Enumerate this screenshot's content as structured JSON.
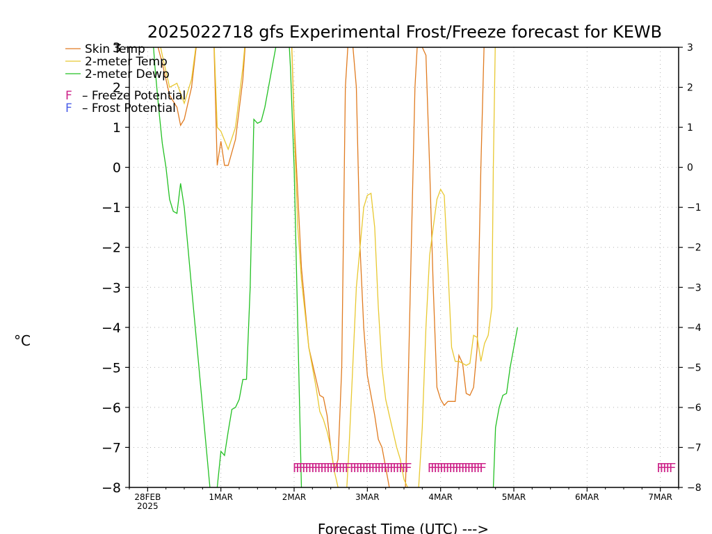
{
  "chart_data": {
    "type": "line",
    "title": "2025022718 gfs Experimental Frost/Freeze forecast for KEWB",
    "xlabel": "Forecast Time (UTC) --->",
    "ylabel": "°C",
    "ylim": [
      -8,
      3
    ],
    "yticks": [
      -8,
      -7,
      -6,
      -5,
      -4,
      -3,
      -2,
      -1,
      0,
      1,
      2,
      3
    ],
    "xlim_days": [
      -0.25,
      7.25
    ],
    "xticks": [
      {
        "day": 0,
        "label": "28FEB",
        "sublabel": "2025"
      },
      {
        "day": 1,
        "label": "1MAR",
        "sublabel": ""
      },
      {
        "day": 2,
        "label": "2MAR",
        "sublabel": ""
      },
      {
        "day": 3,
        "label": "3MAR",
        "sublabel": ""
      },
      {
        "day": 4,
        "label": "4MAR",
        "sublabel": ""
      },
      {
        "day": 5,
        "label": "5MAR",
        "sublabel": ""
      },
      {
        "day": 6,
        "label": "6MAR",
        "sublabel": ""
      },
      {
        "day": 7,
        "label": "7MAR",
        "sublabel": ""
      }
    ],
    "grid": true,
    "legend_position": "top-left",
    "series": [
      {
        "name": "Skin Temp",
        "color": "#e07b20",
        "points": [
          [
            0.07,
            3.5
          ],
          [
            0.2,
            2.6
          ],
          [
            0.3,
            1.8
          ],
          [
            0.4,
            1.5
          ],
          [
            0.45,
            1.05
          ],
          [
            0.5,
            1.2
          ],
          [
            0.6,
            2.0
          ],
          [
            0.7,
            3.6
          ],
          null,
          [
            0.9,
            3.5
          ],
          [
            0.95,
            0.05
          ],
          [
            1.0,
            0.65
          ],
          [
            1.05,
            0.05
          ],
          [
            1.1,
            0.05
          ],
          [
            1.2,
            0.7
          ],
          [
            1.3,
            2.2
          ],
          [
            1.35,
            3.5
          ],
          null,
          [
            1.96,
            3.5
          ],
          [
            2.0,
            1.2
          ],
          [
            2.1,
            -2.5
          ],
          [
            2.2,
            -4.5
          ],
          [
            2.3,
            -5.3
          ],
          [
            2.35,
            -5.7
          ],
          [
            2.4,
            -5.75
          ],
          [
            2.45,
            -6.2
          ],
          [
            2.5,
            -7.0
          ],
          [
            2.55,
            -7.6
          ],
          [
            2.6,
            -7.3
          ],
          [
            2.65,
            -5.0
          ],
          [
            2.7,
            2.0
          ],
          [
            2.75,
            3.5
          ],
          null,
          [
            2.78,
            3.5
          ],
          [
            2.85,
            2.0
          ],
          [
            2.9,
            -2.0
          ],
          [
            2.95,
            -4.0
          ],
          [
            3.0,
            -5.2
          ],
          [
            3.1,
            -6.2
          ],
          [
            3.15,
            -6.8
          ],
          [
            3.2,
            -7.0
          ],
          [
            3.25,
            -7.5
          ],
          [
            3.3,
            -8.0
          ],
          null,
          [
            3.52,
            -8.0
          ],
          [
            3.55,
            -6.0
          ],
          [
            3.6,
            -2.0
          ],
          [
            3.65,
            2.0
          ],
          [
            3.68,
            3.0
          ],
          [
            3.75,
            3.0
          ],
          [
            3.8,
            2.8
          ],
          [
            3.85,
            0.0
          ],
          [
            3.9,
            -3.0
          ],
          [
            3.95,
            -5.5
          ],
          [
            4.0,
            -5.8
          ],
          [
            4.05,
            -5.95
          ],
          [
            4.1,
            -5.85
          ],
          [
            4.2,
            -5.85
          ],
          [
            4.25,
            -4.7
          ],
          [
            4.3,
            -4.9
          ],
          [
            4.35,
            -5.65
          ],
          [
            4.4,
            -5.7
          ],
          [
            4.45,
            -5.5
          ],
          [
            4.5,
            -4.5
          ],
          [
            4.55,
            0.0
          ],
          [
            4.6,
            3.5
          ]
        ]
      },
      {
        "name": "2-meter Temp",
        "color": "#e8c830",
        "points": [
          [
            0.12,
            3.5
          ],
          [
            0.2,
            2.8
          ],
          [
            0.3,
            2.0
          ],
          [
            0.4,
            2.1
          ],
          [
            0.5,
            1.6
          ],
          [
            0.6,
            2.2
          ],
          [
            0.7,
            3.6
          ],
          null,
          [
            0.9,
            3.5
          ],
          [
            0.95,
            1.0
          ],
          [
            1.0,
            0.9
          ],
          [
            1.1,
            0.45
          ],
          [
            1.2,
            1.0
          ],
          [
            1.3,
            2.5
          ],
          [
            1.35,
            3.5
          ],
          null,
          [
            1.96,
            3.5
          ],
          [
            2.0,
            1.0
          ],
          [
            2.05,
            -1.5
          ],
          [
            2.1,
            -2.8
          ],
          [
            2.2,
            -4.5
          ],
          [
            2.3,
            -5.5
          ],
          [
            2.35,
            -6.1
          ],
          [
            2.4,
            -6.3
          ],
          [
            2.45,
            -6.6
          ],
          [
            2.5,
            -7.0
          ],
          [
            2.55,
            -7.6
          ],
          [
            2.6,
            -8.0
          ],
          null,
          [
            2.72,
            -8.0
          ],
          [
            2.75,
            -7.0
          ],
          [
            2.8,
            -5.0
          ],
          [
            2.85,
            -3.0
          ],
          [
            2.9,
            -2.0
          ],
          [
            2.95,
            -1.0
          ],
          [
            3.0,
            -0.7
          ],
          [
            3.05,
            -0.65
          ],
          [
            3.1,
            -1.5
          ],
          [
            3.15,
            -3.5
          ],
          [
            3.2,
            -5.0
          ],
          [
            3.25,
            -5.8
          ],
          [
            3.3,
            -6.2
          ],
          [
            3.35,
            -6.6
          ],
          [
            3.4,
            -7.0
          ],
          [
            3.45,
            -7.3
          ],
          [
            3.5,
            -7.8
          ],
          [
            3.55,
            -8.0
          ],
          null,
          [
            3.7,
            -8.0
          ],
          [
            3.75,
            -6.5
          ],
          [
            3.8,
            -4.0
          ],
          [
            3.85,
            -2.2
          ],
          [
            3.9,
            -1.5
          ],
          [
            3.95,
            -0.8
          ],
          [
            4.0,
            -0.55
          ],
          [
            4.05,
            -0.7
          ],
          [
            4.1,
            -2.5
          ],
          [
            4.15,
            -4.5
          ],
          [
            4.2,
            -4.85
          ],
          [
            4.25,
            -4.85
          ],
          [
            4.3,
            -4.9
          ],
          [
            4.35,
            -4.95
          ],
          [
            4.4,
            -4.9
          ],
          [
            4.45,
            -4.2
          ],
          [
            4.5,
            -4.25
          ],
          [
            4.55,
            -4.85
          ],
          [
            4.6,
            -4.4
          ],
          [
            4.65,
            -4.2
          ],
          [
            4.7,
            -3.5
          ],
          [
            4.72,
            0.0
          ],
          [
            4.75,
            3.5
          ]
        ]
      },
      {
        "name": "2-meter Dewp",
        "color": "#22c022",
        "points": [
          [
            0.06,
            3.5
          ],
          [
            0.1,
            2.5
          ],
          [
            0.15,
            1.5
          ],
          [
            0.2,
            0.6
          ],
          [
            0.25,
            0.0
          ],
          [
            0.3,
            -0.8
          ],
          [
            0.35,
            -1.1
          ],
          [
            0.4,
            -1.15
          ],
          [
            0.45,
            -0.4
          ],
          [
            0.5,
            -1.0
          ],
          [
            0.55,
            -2.0
          ],
          [
            0.6,
            -3.0
          ],
          [
            0.7,
            -5.0
          ],
          [
            0.8,
            -7.0
          ],
          [
            0.85,
            -8.0
          ],
          null,
          [
            0.95,
            -8.0
          ],
          [
            1.0,
            -7.1
          ],
          [
            1.05,
            -7.2
          ],
          [
            1.1,
            -6.6
          ],
          [
            1.15,
            -6.05
          ],
          [
            1.2,
            -6.0
          ],
          [
            1.25,
            -5.8
          ],
          [
            1.3,
            -5.3
          ],
          [
            1.35,
            -5.3
          ],
          [
            1.4,
            -3.0
          ],
          [
            1.45,
            1.2
          ],
          [
            1.5,
            1.1
          ],
          [
            1.55,
            1.15
          ],
          [
            1.6,
            1.5
          ],
          [
            1.7,
            2.5
          ],
          [
            1.8,
            3.5
          ],
          null,
          [
            1.92,
            3.5
          ],
          [
            1.95,
            2.5
          ],
          [
            2.0,
            0.0
          ],
          [
            2.05,
            -4.0
          ],
          [
            2.1,
            -8.0
          ],
          null,
          [
            4.72,
            -8.0
          ],
          [
            4.75,
            -6.5
          ],
          [
            4.8,
            -6.0
          ],
          [
            4.85,
            -5.7
          ],
          [
            4.9,
            -5.65
          ],
          [
            4.95,
            -5.0
          ],
          [
            5.0,
            -4.5
          ],
          [
            5.05,
            -4.0
          ]
        ]
      }
    ],
    "freeze_markers": {
      "label": "F",
      "color": "#cc2288",
      "y": -7.5,
      "runs": [
        [
          1.98,
          2.73
        ],
        [
          2.76,
          3.55
        ],
        [
          3.82,
          4.55
        ],
        [
          6.95,
          7.12
        ]
      ]
    },
    "legend": [
      {
        "label": "Skin Temp",
        "color": "#e07b20",
        "kind": "line"
      },
      {
        "label": "2-meter Temp",
        "color": "#e8c830",
        "kind": "line"
      },
      {
        "label": "2-meter Dewp",
        "color": "#22c022",
        "kind": "line"
      },
      {
        "label": "– Freeze Potential",
        "color": "#cc2288",
        "kind": "glyph",
        "glyph": "F"
      },
      {
        "label": "– Frost Potential",
        "color": "#4a5ee8",
        "kind": "glyph",
        "glyph": "F"
      }
    ]
  }
}
